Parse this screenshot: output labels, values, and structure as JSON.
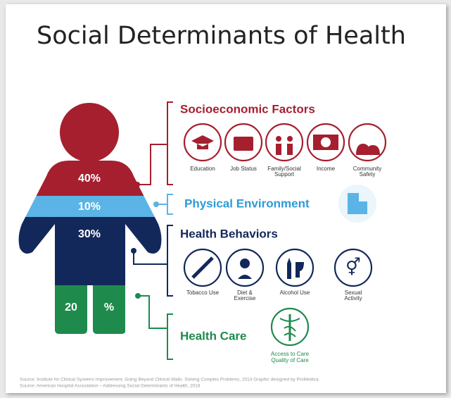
{
  "title": "Social Determinants of Health",
  "figure": {
    "segments": [
      {
        "label": "40%"
      },
      {
        "label": "10%"
      },
      {
        "label": "30%"
      },
      {
        "label_left": "20",
        "label_right": "%"
      }
    ]
  },
  "groups": [
    {
      "heading": "Socioeconomic Factors",
      "items": [
        {
          "lines": [
            "Education"
          ]
        },
        {
          "lines": [
            "Job Status"
          ]
        },
        {
          "lines": [
            "Family/Social",
            "Support"
          ]
        },
        {
          "lines": [
            "Income"
          ]
        },
        {
          "lines": [
            "Community",
            "Safety"
          ]
        }
      ]
    },
    {
      "heading": "Physical Environment",
      "items": []
    },
    {
      "heading": "Health Behaviors",
      "items": [
        {
          "lines": [
            "Tobacco Use"
          ]
        },
        {
          "lines": [
            "Diet &",
            "Exercise"
          ]
        },
        {
          "lines": [
            "Alcohol Use"
          ]
        },
        {
          "lines": [
            "Sexual",
            "Activity"
          ]
        }
      ]
    },
    {
      "heading": "Health Care",
      "items": [
        {
          "lines": [
            "Access to Care",
            "Quality of Care"
          ]
        }
      ]
    }
  ],
  "source": [
    "Source: Institute for Clinical Systems Improvement; Going Beyond Clinical Walls: Solving Complex Problems, 2014 Graphic designed by ProMedica.",
    "Source: American Hospital Association – Addressing Social Determinants of Health, 2018"
  ]
}
